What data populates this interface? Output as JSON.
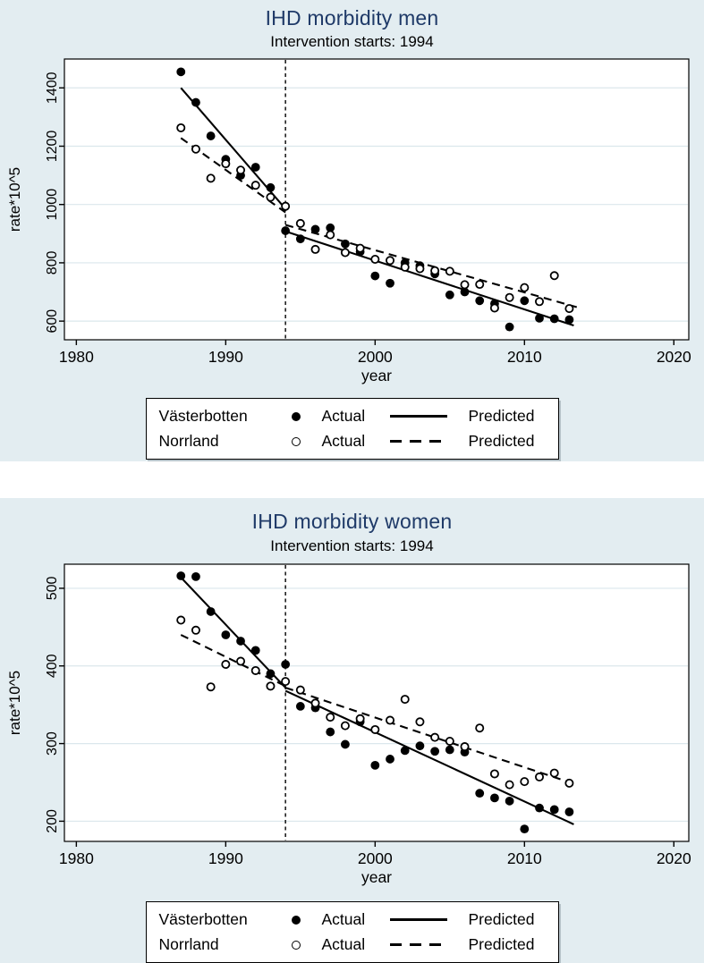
{
  "colors": {
    "panel_background": "#e3edf1",
    "plot_background": "#ffffff",
    "title_color": "#1f3a68",
    "grid_color": "#dbe7ec",
    "ink": "#000000"
  },
  "legend": {
    "rows": [
      {
        "region": "Västerbotten",
        "marker": "filled-circle",
        "actual_label": "Actual",
        "line": "solid",
        "predicted_label": "Predicted"
      },
      {
        "region": "Norrland",
        "marker": "open-circle",
        "actual_label": "Actual",
        "line": "dashed",
        "predicted_label": "Predicted"
      }
    ]
  },
  "chart_data": [
    {
      "type": "scatter",
      "title": "IHD morbidity men",
      "subtitle": "Intervention starts: 1994",
      "xlabel": "year",
      "ylabel": "rate*10^5",
      "xlim": [
        1979.2,
        2021.0
      ],
      "ylim": [
        536,
        1499
      ],
      "xticks": [
        1980,
        1990,
        2000,
        2010,
        2020
      ],
      "yticks": [
        600,
        800,
        1000,
        1200,
        1400
      ],
      "grid": "horizontal",
      "intervention_year": 1994,
      "series": [
        {
          "name": "Västerbotten Actual",
          "style": "filled-circle",
          "points": [
            [
              1987,
              1455
            ],
            [
              1988,
              1350
            ],
            [
              1989,
              1235
            ],
            [
              1990,
              1155
            ],
            [
              1991,
              1100
            ],
            [
              1992,
              1128
            ],
            [
              1993,
              1058
            ],
            [
              1994,
              910
            ],
            [
              1995,
              882
            ],
            [
              1996,
              915
            ],
            [
              1997,
              920
            ],
            [
              1998,
              865
            ],
            [
              1999,
              838
            ],
            [
              2000,
              755
            ],
            [
              2001,
              730
            ],
            [
              2002,
              800
            ],
            [
              2003,
              790
            ],
            [
              2004,
              762
            ],
            [
              2005,
              690
            ],
            [
              2006,
              700
            ],
            [
              2007,
              670
            ],
            [
              2008,
              660
            ],
            [
              2009,
              580
            ],
            [
              2010,
              670
            ],
            [
              2011,
              610
            ],
            [
              2012,
              608
            ],
            [
              2013,
              605
            ]
          ]
        },
        {
          "name": "Norrland Actual",
          "style": "open-circle",
          "points": [
            [
              1987,
              1263
            ],
            [
              1988,
              1190
            ],
            [
              1989,
              1090
            ],
            [
              1990,
              1140
            ],
            [
              1991,
              1118
            ],
            [
              1992,
              1066
            ],
            [
              1993,
              1025
            ],
            [
              1994,
              994
            ],
            [
              1995,
              935
            ],
            [
              1996,
              846
            ],
            [
              1997,
              896
            ],
            [
              1998,
              835
            ],
            [
              1999,
              850
            ],
            [
              2000,
              812
            ],
            [
              2001,
              808
            ],
            [
              2002,
              785
            ],
            [
              2003,
              780
            ],
            [
              2004,
              773
            ],
            [
              2005,
              771
            ],
            [
              2006,
              725
            ],
            [
              2007,
              726
            ],
            [
              2008,
              645
            ],
            [
              2009,
              681
            ],
            [
              2010,
              715
            ],
            [
              2011,
              667
            ],
            [
              2012,
              756
            ],
            [
              2013,
              643
            ]
          ]
        },
        {
          "name": "Västerbotten Predicted",
          "style": "solid-line",
          "segments": [
            [
              [
                1987,
                1400
              ],
              [
                1994,
                985
              ]
            ],
            [
              [
                1994,
                908
              ],
              [
                2013.3,
                585
              ]
            ]
          ]
        },
        {
          "name": "Norrland Predicted",
          "style": "dashed-line",
          "segments": [
            [
              [
                1987,
                1228
              ],
              [
                1994,
                973
              ]
            ],
            [
              [
                1994,
                930
              ],
              [
                2013.5,
                648
              ]
            ]
          ]
        }
      ]
    },
    {
      "type": "scatter",
      "title": "IHD morbidity women",
      "subtitle": "Intervention starts: 1994",
      "xlabel": "year",
      "ylabel": "rate*10^5",
      "xlim": [
        1979.2,
        2021.0
      ],
      "ylim": [
        174,
        531
      ],
      "xticks": [
        1980,
        1990,
        2000,
        2010,
        2020
      ],
      "yticks": [
        200,
        300,
        400,
        500
      ],
      "grid": "horizontal",
      "intervention_year": 1994,
      "series": [
        {
          "name": "Västerbotten Actual",
          "style": "filled-circle",
          "points": [
            [
              1987,
              516
            ],
            [
              1988,
              515
            ],
            [
              1989,
              470
            ],
            [
              1990,
              440
            ],
            [
              1991,
              432
            ],
            [
              1992,
              420
            ],
            [
              1993,
              390
            ],
            [
              1994,
              402
            ],
            [
              1995,
              348
            ],
            [
              1996,
              346
            ],
            [
              1997,
              315
            ],
            [
              1998,
              299
            ],
            [
              1999,
              328
            ],
            [
              2000,
              272
            ],
            [
              2001,
              280
            ],
            [
              2002,
              291
            ],
            [
              2003,
              297
            ],
            [
              2004,
              290
            ],
            [
              2005,
              292
            ],
            [
              2006,
              289
            ],
            [
              2007,
              236
            ],
            [
              2008,
              230
            ],
            [
              2009,
              226
            ],
            [
              2010,
              190
            ],
            [
              2011,
              217
            ],
            [
              2012,
              215
            ],
            [
              2013,
              212
            ]
          ]
        },
        {
          "name": "Norrland Actual",
          "style": "open-circle",
          "points": [
            [
              1987,
              459
            ],
            [
              1988,
              446
            ],
            [
              1989,
              373
            ],
            [
              1990,
              402
            ],
            [
              1991,
              406
            ],
            [
              1992,
              394
            ],
            [
              1993,
              374
            ],
            [
              1994,
              380
            ],
            [
              1995,
              369
            ],
            [
              1996,
              352
            ],
            [
              1997,
              334
            ],
            [
              1998,
              323
            ],
            [
              1999,
              332
            ],
            [
              2000,
              318
            ],
            [
              2001,
              330
            ],
            [
              2002,
              357
            ],
            [
              2003,
              328
            ],
            [
              2004,
              308
            ],
            [
              2005,
              303
            ],
            [
              2006,
              296
            ],
            [
              2007,
              320
            ],
            [
              2008,
              261
            ],
            [
              2009,
              247
            ],
            [
              2010,
              251
            ],
            [
              2011,
              257
            ],
            [
              2012,
              262
            ],
            [
              2013,
              249
            ]
          ]
        },
        {
          "name": "Västerbotten Predicted",
          "style": "solid-line",
          "segments": [
            [
              [
                1987,
                514
              ],
              [
                1994,
                372
              ]
            ],
            [
              [
                1994,
                368
              ],
              [
                2013.3,
                196
              ]
            ]
          ]
        },
        {
          "name": "Norrland Predicted",
          "style": "dashed-line",
          "segments": [
            [
              [
                1987,
                440
              ],
              [
                1994,
                374
              ]
            ],
            [
              [
                1994,
                372
              ],
              [
                2013.5,
                247
              ]
            ]
          ]
        }
      ]
    }
  ]
}
